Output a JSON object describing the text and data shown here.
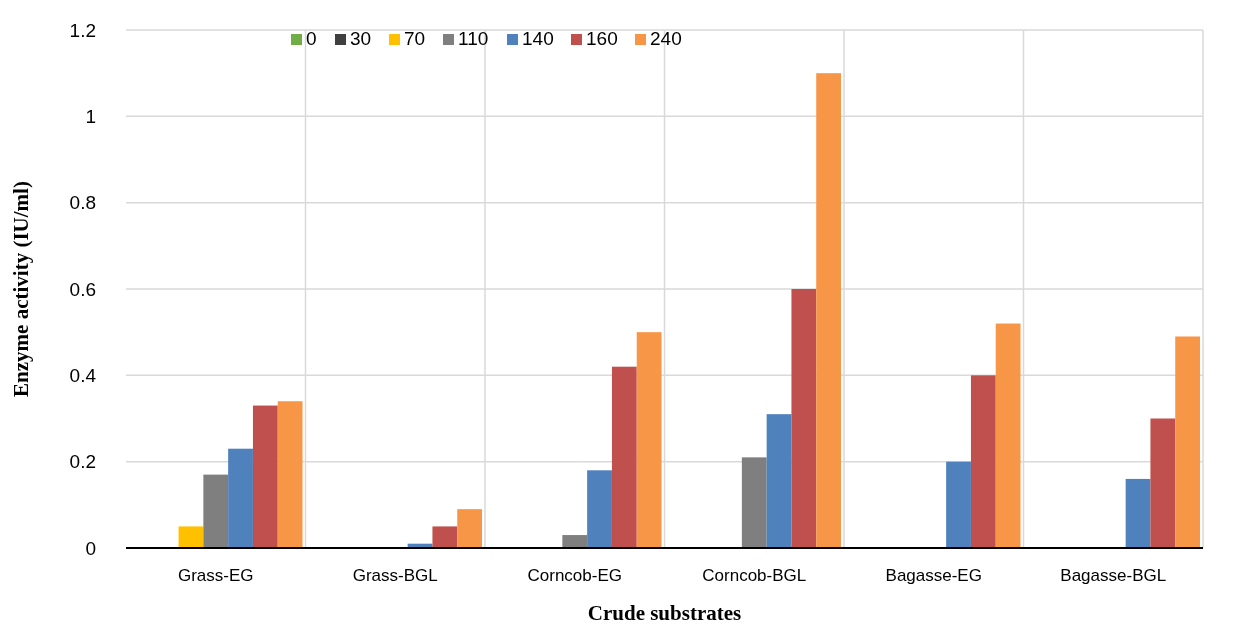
{
  "chart_data": {
    "type": "bar",
    "xlabel": "Crude substrates",
    "ylabel": "Enzyme activity (IU/ml)",
    "categories": [
      "Grass-EG",
      "Grass-BGL",
      "Corncob-EG",
      "Corncob-BGL",
      "Bagasse-EG",
      "Bagasse-BGL"
    ],
    "series": [
      {
        "name": "0",
        "color": "#70ad47",
        "values": [
          0,
          0,
          0,
          0,
          0,
          0
        ]
      },
      {
        "name": "30",
        "color": "#404040",
        "values": [
          0,
          0,
          0,
          0,
          0,
          0
        ]
      },
      {
        "name": "70",
        "color": "#ffc000",
        "values": [
          0.05,
          0,
          0,
          0,
          0,
          0
        ]
      },
      {
        "name": "110",
        "color": "#7f7f7f",
        "values": [
          0.17,
          0,
          0.03,
          0.21,
          0,
          0
        ]
      },
      {
        "name": "140",
        "color": "#4f81bd",
        "values": [
          0.23,
          0.01,
          0.18,
          0.31,
          0.2,
          0.16
        ]
      },
      {
        "name": "160",
        "color": "#c0504d",
        "values": [
          0.33,
          0.05,
          0.42,
          0.6,
          0.4,
          0.3
        ]
      },
      {
        "name": "240",
        "color": "#f79646",
        "values": [
          0.34,
          0.09,
          0.5,
          1.1,
          0.52,
          0.49
        ]
      }
    ],
    "ylim": [
      0,
      1.2
    ],
    "yticks": [
      0,
      0.2,
      0.4,
      0.6,
      0.8,
      1,
      1.2
    ],
    "grid": true,
    "legend": "top left"
  }
}
